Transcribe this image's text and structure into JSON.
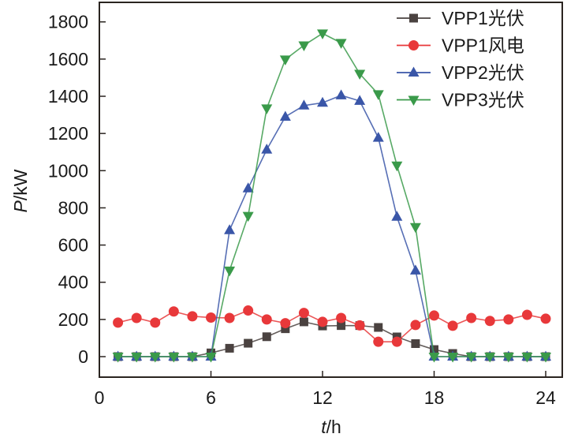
{
  "chart_data": {
    "type": "line",
    "title": "",
    "xlabel_italic": "t",
    "xlabel_unit": "/h",
    "ylabel_italic": "P",
    "ylabel_unit": "/kW",
    "xlim": [
      0,
      24.9
    ],
    "ylim": [
      0,
      1905
    ],
    "xticks": [
      0,
      6,
      12,
      18,
      24
    ],
    "yticks": [
      0,
      200,
      400,
      600,
      800,
      1000,
      1200,
      1400,
      1600,
      1800
    ],
    "grid": false,
    "legend_position": "top-right",
    "x": [
      1,
      2,
      3,
      4,
      5,
      6,
      7,
      8,
      9,
      10,
      11,
      12,
      13,
      14,
      15,
      16,
      17,
      18,
      19,
      20,
      21,
      22,
      23,
      24
    ],
    "series": [
      {
        "name": "VPP1光伏",
        "color": "#4a4240",
        "marker": "square",
        "values": [
          0,
          0,
          0,
          0,
          0,
          20,
          45,
          72,
          107,
          150,
          187,
          165,
          167,
          167,
          157,
          106,
          70,
          38,
          17,
          0,
          0,
          0,
          0,
          0
        ]
      },
      {
        "name": "VPP1风电",
        "color": "#e8383a",
        "marker": "circle",
        "values": [
          183,
          208,
          183,
          243,
          217,
          210,
          208,
          248,
          200,
          180,
          235,
          187,
          208,
          168,
          80,
          80,
          170,
          221,
          166,
          208,
          192,
          200,
          225,
          204
        ]
      },
      {
        "name": "VPP2光伏",
        "color": "#3a56a8",
        "marker": "triangle-up",
        "values": [
          0,
          0,
          0,
          0,
          0,
          0,
          680,
          905,
          1113,
          1290,
          1350,
          1365,
          1405,
          1375,
          1177,
          752,
          463,
          0,
          0,
          0,
          0,
          0,
          0,
          0
        ]
      },
      {
        "name": "VPP3光伏",
        "color": "#3a9a4a",
        "marker": "triangle-down",
        "values": [
          0,
          0,
          0,
          0,
          0,
          0,
          463,
          757,
          1335,
          1598,
          1674,
          1738,
          1687,
          1521,
          1411,
          1028,
          697,
          0,
          0,
          0,
          0,
          0,
          0,
          0
        ]
      }
    ]
  }
}
